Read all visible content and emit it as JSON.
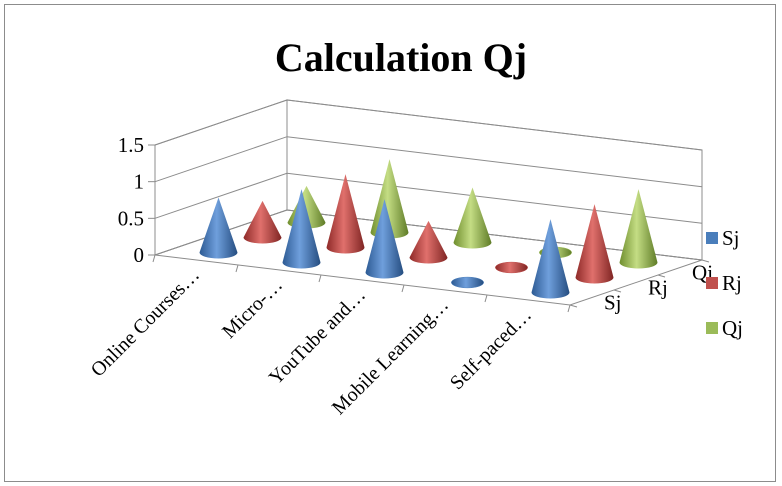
{
  "chart_data": {
    "type": "3d-cone-column",
    "title": "Calculation Qj",
    "categories": [
      "Online Courses…",
      "Micro-…",
      "YouTube and…",
      "Mobile Learning…",
      "Self-paced…"
    ],
    "series": [
      {
        "name": "Sj",
        "values": [
          0.75,
          1.0,
          1.0,
          0.0,
          1.0
        ]
      },
      {
        "name": "Rj",
        "values": [
          0.5,
          1.0,
          0.5,
          0.0,
          1.0
        ]
      },
      {
        "name": "Qj",
        "values": [
          0.5,
          1.0,
          0.75,
          0.0,
          1.0
        ]
      }
    ],
    "yticks": [
      "0",
      "0.5",
      "1",
      "1.5"
    ],
    "ylim": [
      0,
      1.5
    ],
    "legend_position": "right",
    "colors": {
      "Sj": "#4a7ebb",
      "Rj": "#c0504d",
      "Qj": "#9bbb59"
    }
  }
}
